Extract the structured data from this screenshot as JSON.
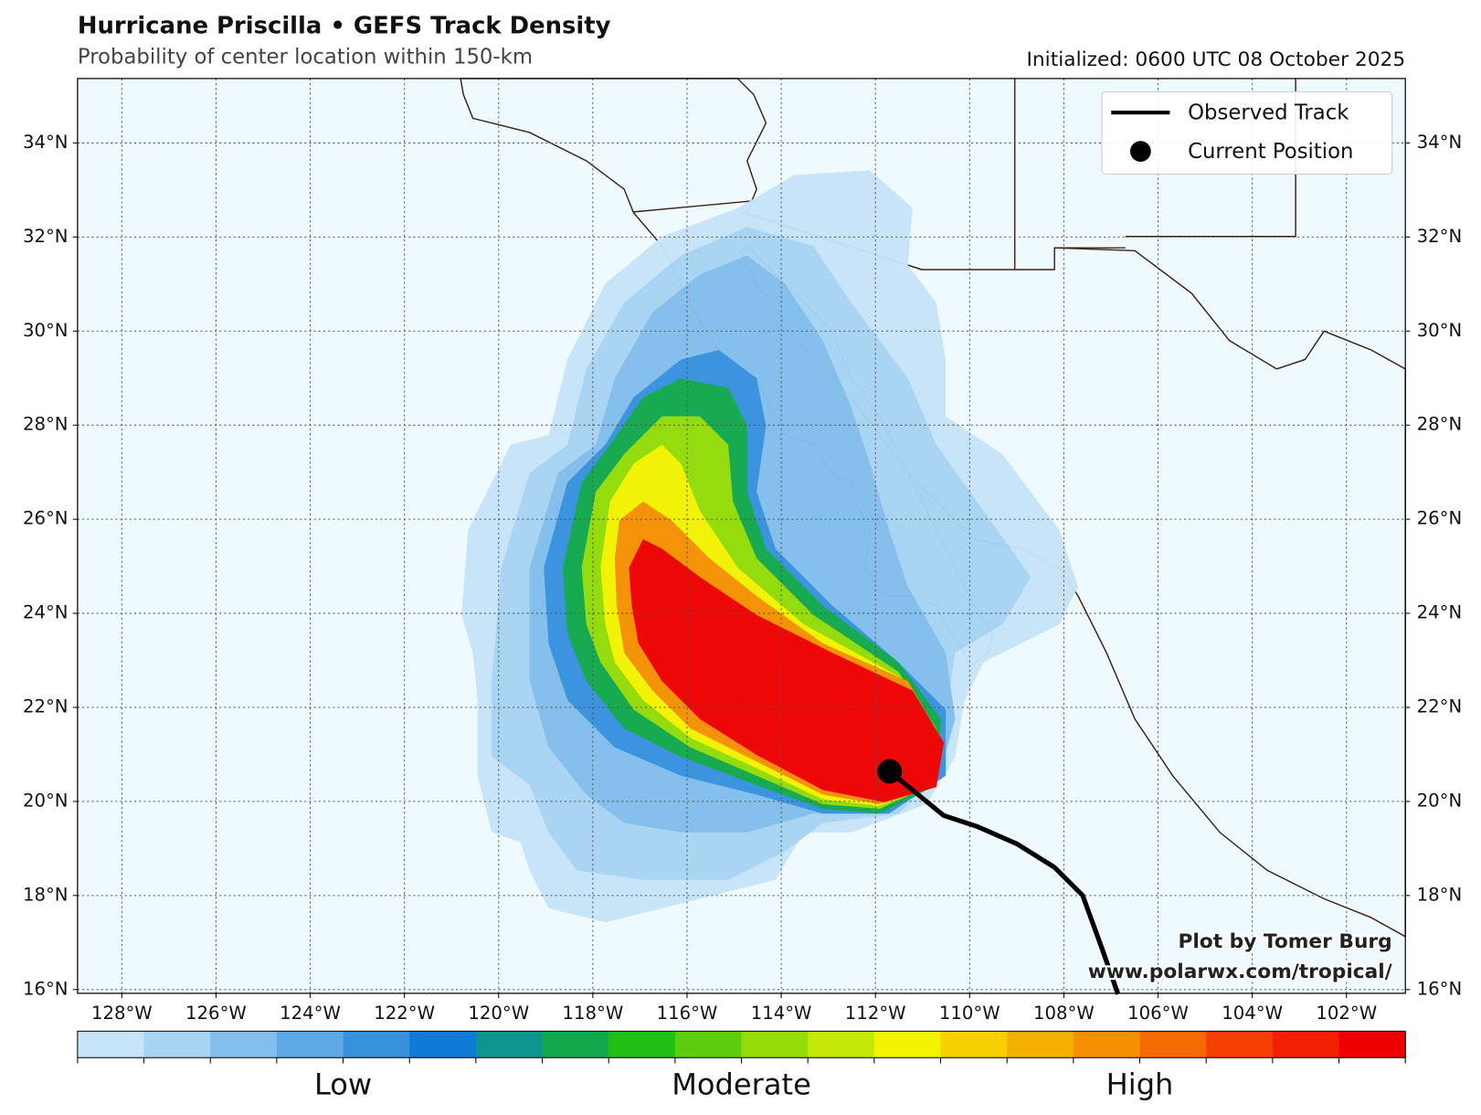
{
  "header": {
    "title": "Hurricane Priscilla • GEFS Track Density",
    "subtitle": "Probability of center location within 150-km",
    "initialized": "Initialized: 0600 UTC 08 October 2025"
  },
  "map": {
    "lon_range": [
      -128.94,
      -100.75
    ],
    "lat_range": [
      15.92,
      35.37
    ],
    "lon_ticks": [
      {
        "value": -128,
        "label": "128°W"
      },
      {
        "value": -126,
        "label": "126°W"
      },
      {
        "value": -124,
        "label": "124°W"
      },
      {
        "value": -122,
        "label": "122°W"
      },
      {
        "value": -120,
        "label": "120°W"
      },
      {
        "value": -118,
        "label": "118°W"
      },
      {
        "value": -116,
        "label": "116°W"
      },
      {
        "value": -114,
        "label": "114°W"
      },
      {
        "value": -112,
        "label": "112°W"
      },
      {
        "value": -110,
        "label": "110°W"
      },
      {
        "value": -108,
        "label": "108°W"
      },
      {
        "value": -106,
        "label": "106°W"
      },
      {
        "value": -104,
        "label": "104°W"
      },
      {
        "value": -102,
        "label": "102°W"
      }
    ],
    "lat_ticks": [
      {
        "value": 16,
        "label": "16°N"
      },
      {
        "value": 18,
        "label": "18°N"
      },
      {
        "value": 20,
        "label": "20°N"
      },
      {
        "value": 22,
        "label": "22°N"
      },
      {
        "value": 24,
        "label": "24°N"
      },
      {
        "value": 26,
        "label": "26°N"
      },
      {
        "value": 28,
        "label": "28°N"
      },
      {
        "value": 30,
        "label": "30°N"
      },
      {
        "value": 32,
        "label": "32°N"
      },
      {
        "value": 34,
        "label": "34°N"
      }
    ],
    "observed_track": {
      "lon": [
        -111.7,
        -110.55,
        -109.85,
        -109.0,
        -108.2,
        -107.6,
        -107.2,
        -106.85
      ],
      "lat": [
        20.64,
        19.7,
        19.47,
        19.1,
        18.6,
        18.0,
        16.9,
        15.9
      ],
      "color": "#000000"
    },
    "current_position": {
      "lon": -111.7,
      "lat": 20.64,
      "color": "#000000"
    }
  },
  "legend": {
    "entries": [
      "Observed Track",
      "Current Position"
    ]
  },
  "credit": {
    "line1": "Plot by Tomer Burg",
    "line2": "www.polarwx.com/tropical/"
  },
  "colorbar": {
    "colors": [
      "#c6e4f8",
      "#a7d4f3",
      "#82bfec",
      "#5ca9e6",
      "#3891dd",
      "#107bd6",
      "#0e9590",
      "#12a84c",
      "#1fbf14",
      "#5ccc0c",
      "#93dc08",
      "#c6e808",
      "#f3f200",
      "#f7d000",
      "#f6b000",
      "#f59000",
      "#f56a00",
      "#f54000",
      "#f02000",
      "#ee0000"
    ],
    "labels": [
      "Low",
      "Moderate",
      "High"
    ]
  }
}
